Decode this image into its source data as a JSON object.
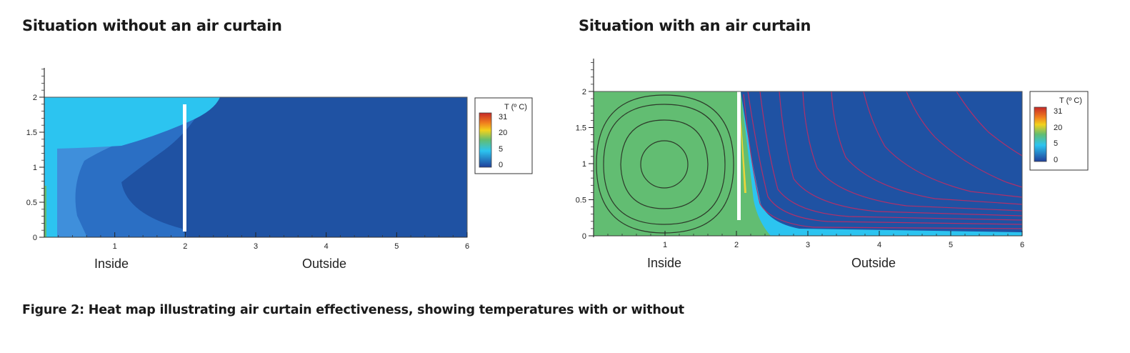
{
  "figure": {
    "caption": "Figure 2: Heat map illustrating air curtain effectiveness, showing temperatures with or without"
  },
  "colors": {
    "very_cold": "#1f52a3",
    "cold": "#2b6fc4",
    "cool": "#3f8fdb",
    "light_blue": "#2cc4f0",
    "green": "#62bd72",
    "streamline_dark": "#2d3a2a",
    "streamline_red": "#b0306a",
    "curtain": "#ffffff"
  },
  "chart_data": [
    {
      "type": "heatmap",
      "title": "Situation without an air curtain",
      "x_ticks": [
        "1",
        "2",
        "3",
        "4",
        "5",
        "6"
      ],
      "y_ticks": [
        "0",
        "0.5",
        "1",
        "1.5",
        "2"
      ],
      "xlim": [
        0,
        6
      ],
      "ylim": [
        0,
        2
      ],
      "region_labels": [
        {
          "text": "Inside",
          "x": 1
        },
        {
          "text": "Outside",
          "x": 4
        }
      ],
      "curtain_x": 2,
      "legend": {
        "title": "T (º C)",
        "ticks": [
          "31",
          "20",
          "5",
          "0"
        ]
      },
      "streamlines": false
    },
    {
      "type": "heatmap",
      "title": "Situation with an air curtain",
      "x_ticks": [
        "1",
        "2",
        "3",
        "4",
        "5",
        "6"
      ],
      "y_ticks": [
        "0",
        "0.5",
        "1",
        "1.5",
        "2"
      ],
      "xlim": [
        0,
        6
      ],
      "ylim": [
        0,
        2
      ],
      "region_labels": [
        {
          "text": "Inside",
          "x": 1
        },
        {
          "text": "Outside",
          "x": 4
        }
      ],
      "curtain_x": 2,
      "legend": {
        "title": "T (º C)",
        "ticks": [
          "31",
          "20",
          "5",
          "0"
        ]
      },
      "streamlines": true
    }
  ]
}
